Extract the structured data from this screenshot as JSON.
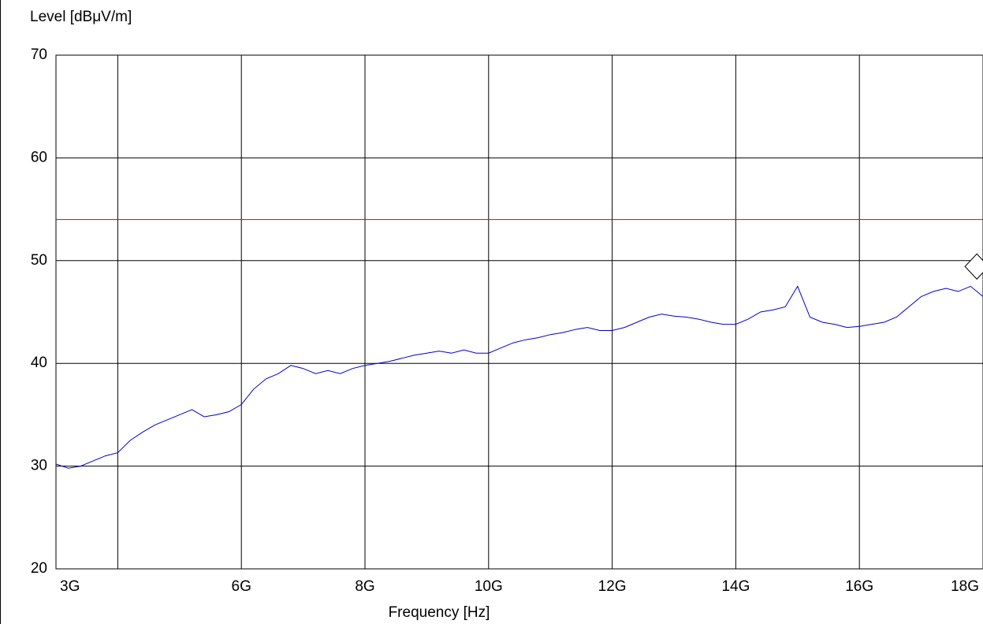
{
  "chart_data": {
    "type": "line",
    "ylabel": "Level [dBμV/m]",
    "xlabel": "Frequency [Hz]",
    "xlim": [
      3000000000,
      18000000000
    ],
    "ylim": [
      20,
      70
    ],
    "yticks": [
      20,
      30,
      40,
      50,
      60,
      70
    ],
    "xticks": [
      {
        "value": 3000000000,
        "label": "3G"
      },
      {
        "value": 6000000000,
        "label": "6G"
      },
      {
        "value": 8000000000,
        "label": "8G"
      },
      {
        "value": 10000000000,
        "label": "10G"
      },
      {
        "value": 12000000000,
        "label": "12G"
      },
      {
        "value": 14000000000,
        "label": "14G"
      },
      {
        "value": 16000000000,
        "label": "16G"
      },
      {
        "value": 18000000000,
        "label": "18G"
      }
    ],
    "xgrid": [
      4000000000
    ],
    "grid": true,
    "limit": {
      "value": 54,
      "color": "#e00000"
    },
    "marker": {
      "x": 17900000000,
      "y": 48.2
    },
    "series": [
      {
        "color": "#0000cc",
        "x": [
          3000000000,
          3200000000,
          3400000000,
          3600000000,
          3800000000,
          4000000000,
          4200000000,
          4400000000,
          4600000000,
          4800000000,
          5000000000,
          5200000000,
          5400000000,
          5600000000,
          5800000000,
          6000000000,
          6200000000,
          6400000000,
          6600000000,
          6800000000,
          7000000000,
          7200000000,
          7400000000,
          7600000000,
          7800000000,
          8000000000,
          8200000000,
          8400000000,
          8600000000,
          8800000000,
          9000000000,
          9200000000,
          9400000000,
          9600000000,
          9800000000,
          10000000000,
          10200000000,
          10400000000,
          10600000000,
          10800000000,
          11000000000,
          11200000000,
          11400000000,
          11600000000,
          11800000000,
          12000000000,
          12200000000,
          12400000000,
          12600000000,
          12800000000,
          13000000000,
          13200000000,
          13400000000,
          13600000000,
          13800000000,
          14000000000,
          14200000000,
          14400000000,
          14600000000,
          14800000000,
          15000000000,
          15200000000,
          15400000000,
          15600000000,
          15800000000,
          16000000000,
          16200000000,
          16400000000,
          16600000000,
          16800000000,
          17000000000,
          17200000000,
          17400000000,
          17600000000,
          17800000000,
          18000000000
        ],
        "values": [
          30.2,
          29.8,
          30.0,
          30.5,
          31.0,
          31.3,
          32.5,
          33.3,
          34.0,
          34.5,
          35.0,
          35.5,
          34.8,
          35.0,
          35.3,
          36.0,
          37.5,
          38.5,
          39.0,
          39.8,
          39.5,
          39.0,
          39.3,
          39.0,
          39.5,
          39.8,
          40.0,
          40.2,
          40.5,
          40.8,
          41.0,
          41.2,
          41.0,
          41.3,
          41.0,
          41.0,
          41.5,
          42.0,
          42.3,
          42.5,
          42.8,
          43.0,
          43.3,
          43.5,
          43.2,
          43.2,
          43.5,
          44.0,
          44.5,
          44.8,
          44.6,
          44.5,
          44.3,
          44.0,
          43.8,
          43.8,
          44.3,
          45.0,
          45.2,
          45.5,
          47.5,
          44.5,
          44.0,
          43.8,
          43.5,
          43.6,
          43.8,
          44.0,
          44.5,
          45.5,
          46.5,
          47.0,
          47.3,
          47.0,
          47.5,
          46.5
        ]
      }
    ]
  }
}
